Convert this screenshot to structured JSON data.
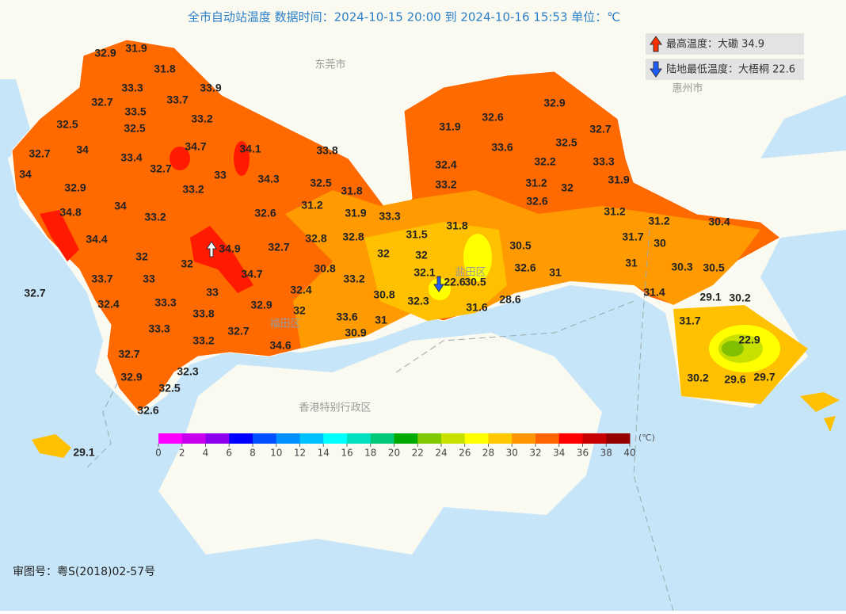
{
  "title": "全市自动站温度  数据时间：2024-10-15 20:00 到 2024-10-16 15:53  单位：℃",
  "info": {
    "max": "最高温度：大磡 34.9",
    "min": "陆地最低温度：大梧桐 22.6"
  },
  "place_labels": [
    "东莞市",
    "惠州市",
    "香港特别行政区",
    "盐田区",
    "福田区"
  ],
  "stations": [
    32.9,
    31.9,
    31.8,
    33.3,
    33.9,
    32.7,
    33.7,
    33.5,
    32.5,
    33.2,
    32.5,
    34.7,
    34.1,
    33.8,
    32.7,
    34,
    33.4,
    32.7,
    34,
    33,
    34.3,
    32.5,
    31.8,
    32.9,
    33.2,
    31.2,
    34,
    33.2,
    32.6,
    31.9,
    33.3,
    34.8,
    34.4,
    34.9,
    32,
    32,
    34.7,
    32.7,
    32.8,
    32.8,
    32,
    31.5,
    31.8,
    32,
    30.8,
    33.2,
    32.1,
    22.6,
    30.5,
    30.5,
    32.6,
    31,
    33.7,
    33,
    33,
    32.4,
    30.8,
    32.3,
    28.6,
    31.6,
    32.4,
    33.3,
    33.8,
    32.9,
    32,
    33.6,
    31,
    30.9,
    33.3,
    32.7,
    33.2,
    34.6,
    32.7,
    32.7,
    32.3,
    32.9,
    32.5,
    32.6,
    29.1,
    32.9,
    32.6,
    31.9,
    32.7,
    32.5,
    33.6,
    32.4,
    32.2,
    33.3,
    33.2,
    31.2,
    32,
    31.9,
    32.6,
    31.2,
    31.2,
    30.4,
    31.7,
    30,
    31,
    30.3,
    30.5,
    31.4,
    29.1,
    30.2,
    31.7,
    22.9,
    30.2,
    29.6,
    29.7
  ],
  "legend": {
    "unit": "(℃)",
    "ticks": [
      0,
      2,
      4,
      6,
      8,
      10,
      12,
      14,
      16,
      18,
      20,
      22,
      24,
      26,
      28,
      30,
      32,
      34,
      36,
      38,
      40
    ],
    "colors": [
      "#ff00ff",
      "#c800f0",
      "#8c00f0",
      "#0000ff",
      "#0050ff",
      "#0090ff",
      "#00c0ff",
      "#00ffff",
      "#00e0c0",
      "#00c878",
      "#00aa00",
      "#80c800",
      "#c8e000",
      "#ffff00",
      "#ffc800",
      "#ff9600",
      "#ff6400",
      "#ff0000",
      "#c80000",
      "#960000"
    ]
  },
  "footer": "审图号：粤S(2018)02-57号"
}
